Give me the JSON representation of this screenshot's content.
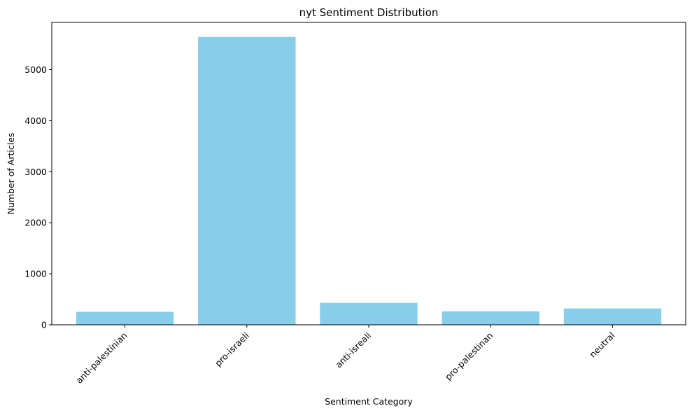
{
  "chart_data": {
    "type": "bar",
    "title": "nyt Sentiment Distribution",
    "xlabel": "Sentiment Category",
    "ylabel": "Number of Articles",
    "categories": [
      "anti-palestinian",
      "pro-israeli",
      "anti-isreali",
      "pro-palestinan",
      "neutral"
    ],
    "values": [
      255,
      5640,
      430,
      265,
      320
    ],
    "ylim": [
      0,
      5925
    ],
    "yticks": [
      0,
      1000,
      2000,
      3000,
      4000,
      5000
    ],
    "grid": false,
    "bar_color": "#87ceeb"
  }
}
